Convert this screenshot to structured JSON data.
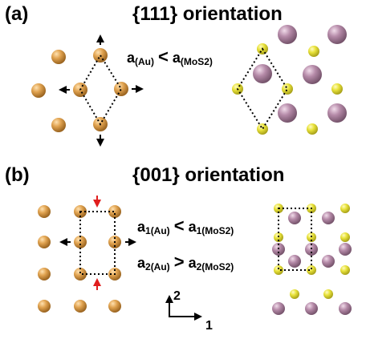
{
  "panel_a": {
    "label": "(a)",
    "title": "{111} orientation",
    "relation": {
      "lhs": "a",
      "lhs_sub": "(Au)",
      "op": "<",
      "rhs": "a",
      "rhs_sub": "(MoS2)"
    }
  },
  "panel_b": {
    "label": "(b)",
    "title": "{001} orientation",
    "relation_1": {
      "lhs": "a",
      "lhs_sub": "1(Au)",
      "op": "<",
      "rhs": "a",
      "rhs_sub": "1(MoS2)"
    },
    "relation_2": {
      "lhs": "a",
      "lhs_sub": "2(Au)",
      "op": ">",
      "rhs": "a",
      "rhs_sub": "2(MoS2)"
    }
  },
  "axes": {
    "vertical": "2",
    "horizontal": "1"
  },
  "colors": {
    "au_atom": "#e0a24f",
    "s_atom": "#e8e23a",
    "mo_atom": "#b58aa8",
    "strain_arrow_red": "#e01e1e",
    "arrow_black": "#000000"
  }
}
